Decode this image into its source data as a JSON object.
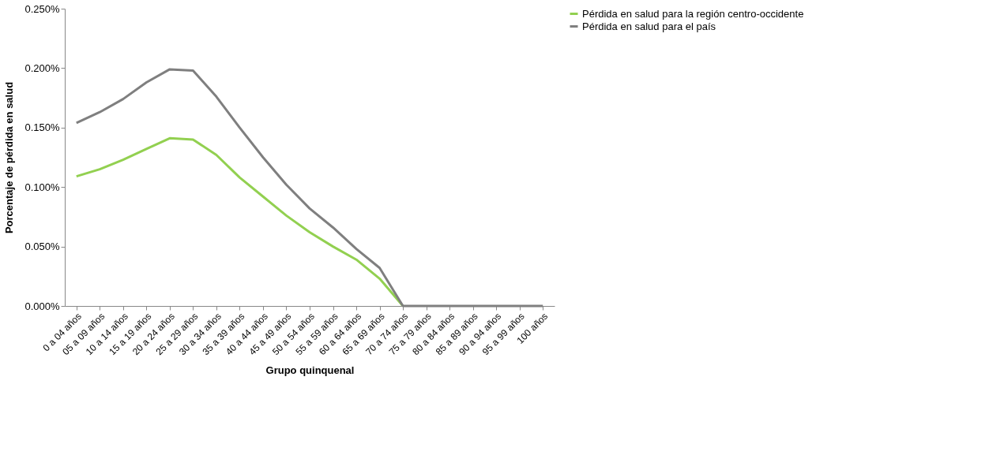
{
  "chart_data": {
    "type": "line",
    "xlabel": "Grupo quinquenal",
    "ylabel": "Porcentaje de pérdida en salud",
    "categories": [
      "0 a 04 años",
      "05 a 09 años",
      "10 a 14 años",
      "15 a 19 años",
      "20 a 24 años",
      "25 a 29 años",
      "30 a 34 años",
      "35 a 39 años",
      "40 a 44 años",
      "45 a 49 años",
      "50 a 54 años",
      "55 a 59 años",
      "60 a 64 años",
      "65 a 69 años",
      "70 a 74 años",
      "75 a 79 años",
      "80 a 84 años",
      "85 a 89 años",
      "90 a 94 años",
      "95 a 99 años",
      "100 años"
    ],
    "series": [
      {
        "name": "Pérdida en salud para la región centro-occidente",
        "color": "#92d050",
        "values": [
          0.109,
          0.115,
          0.123,
          0.132,
          0.141,
          0.14,
          0.127,
          0.108,
          0.092,
          0.076,
          0.062,
          0.05,
          0.039,
          0.023,
          0,
          null,
          null,
          null,
          null,
          null,
          null
        ]
      },
      {
        "name": "Pérdida en salud para el país",
        "color": "#7f7f7f",
        "values": [
          0.154,
          0.163,
          0.174,
          0.188,
          0.199,
          0.198,
          0.176,
          0.15,
          0.125,
          0.102,
          0.082,
          0.066,
          0.048,
          0.032,
          0,
          0,
          0,
          0,
          0,
          0,
          0
        ]
      }
    ],
    "ylim": [
      0,
      0.25
    ],
    "yticks": [
      {
        "value": 0,
        "label": "0.000%"
      },
      {
        "value": 0.05,
        "label": "0.050%"
      },
      {
        "value": 0.1,
        "label": "0.100%"
      },
      {
        "value": 0.15,
        "label": "0.150%"
      },
      {
        "value": 0.2,
        "label": "0.200%"
      },
      {
        "value": 0.25,
        "label": "0.250%"
      }
    ],
    "grid": false,
    "legend": "right",
    "marker": "none",
    "line_style": "solid"
  }
}
